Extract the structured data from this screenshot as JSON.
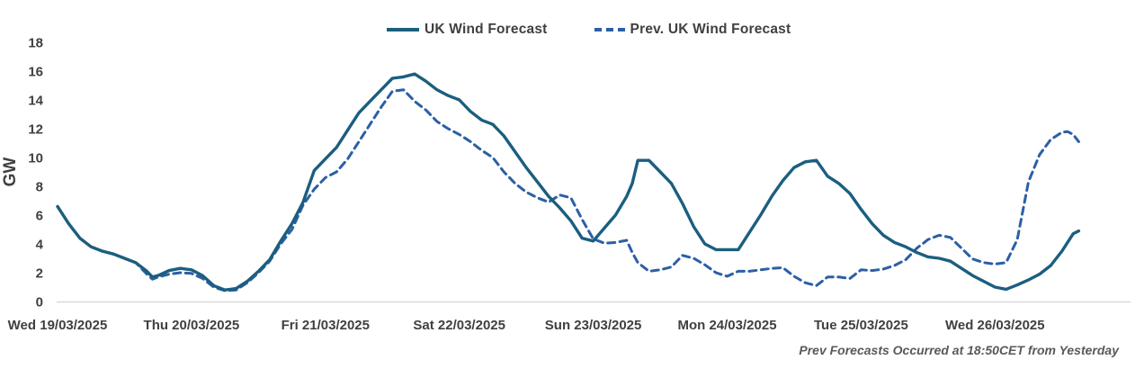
{
  "chart_data": {
    "type": "line",
    "title": "",
    "ylabel": "GW",
    "ylim": [
      0,
      18
    ],
    "y_ticks": [
      0,
      2,
      4,
      6,
      8,
      10,
      12,
      14,
      16,
      18
    ],
    "x_labels": [
      "Wed 19/03/2025",
      "Thu 20/03/2025",
      "Fri 21/03/2025",
      "Sat 22/03/2025",
      "Sun 23/03/2025",
      "Mon 24/03/2025",
      "Tue 25/03/2025",
      "Wed 26/03/2025"
    ],
    "x_unit": "hours from Wed 19/03/2025 00:00",
    "grid": "off",
    "legend_position": "top",
    "footnote": "Prev Forecasts Occurred at 18:50CET from Yesterday",
    "axis_color": "#D9D9D9",
    "text_color": "#404040",
    "series": [
      {
        "name": "Prev. UK Wind Forecast",
        "style": "dashed",
        "color": "#2C5FA5",
        "points": [
          [
            0,
            6.6
          ],
          [
            2,
            5.4
          ],
          [
            4,
            4.4
          ],
          [
            6,
            3.8
          ],
          [
            8,
            3.5
          ],
          [
            10,
            3.3
          ],
          [
            12,
            3.0
          ],
          [
            14,
            2.7
          ],
          [
            16,
            1.9
          ],
          [
            17,
            1.55
          ],
          [
            18,
            1.7
          ],
          [
            20,
            1.9
          ],
          [
            22,
            2.0
          ],
          [
            24,
            1.95
          ],
          [
            26,
            1.6
          ],
          [
            28,
            1.0
          ],
          [
            30,
            0.75
          ],
          [
            32,
            0.8
          ],
          [
            34,
            1.3
          ],
          [
            36,
            2.0
          ],
          [
            38,
            2.8
          ],
          [
            40,
            4.0
          ],
          [
            42,
            5.0
          ],
          [
            44,
            6.7
          ],
          [
            46,
            7.8
          ],
          [
            48,
            8.6
          ],
          [
            50,
            9.0
          ],
          [
            52,
            9.9
          ],
          [
            54,
            11.1
          ],
          [
            56,
            12.3
          ],
          [
            58,
            13.5
          ],
          [
            60,
            14.6
          ],
          [
            62,
            14.7
          ],
          [
            64,
            13.9
          ],
          [
            66,
            13.3
          ],
          [
            68,
            12.5
          ],
          [
            70,
            12.0
          ],
          [
            72,
            11.6
          ],
          [
            74,
            11.1
          ],
          [
            76,
            10.5
          ],
          [
            78,
            10.0
          ],
          [
            80,
            9.0
          ],
          [
            82,
            8.2
          ],
          [
            84,
            7.6
          ],
          [
            86,
            7.2
          ],
          [
            88,
            6.9
          ],
          [
            90,
            7.4
          ],
          [
            92,
            7.2
          ],
          [
            94,
            5.7
          ],
          [
            96,
            4.35
          ],
          [
            98,
            4.05
          ],
          [
            100,
            4.1
          ],
          [
            102,
            4.25
          ],
          [
            103,
            3.4
          ],
          [
            104,
            2.7
          ],
          [
            106,
            2.1
          ],
          [
            108,
            2.2
          ],
          [
            110,
            2.4
          ],
          [
            112,
            3.2
          ],
          [
            114,
            3.0
          ],
          [
            116,
            2.55
          ],
          [
            118,
            2.0
          ],
          [
            120,
            1.75
          ],
          [
            122,
            2.1
          ],
          [
            124,
            2.1
          ],
          [
            126,
            2.2
          ],
          [
            128,
            2.3
          ],
          [
            130,
            2.35
          ],
          [
            132,
            1.75
          ],
          [
            134,
            1.3
          ],
          [
            136,
            1.1
          ],
          [
            138,
            1.7
          ],
          [
            140,
            1.7
          ],
          [
            142,
            1.6
          ],
          [
            144,
            2.2
          ],
          [
            146,
            2.15
          ],
          [
            148,
            2.25
          ],
          [
            150,
            2.5
          ],
          [
            152,
            2.9
          ],
          [
            154,
            3.7
          ],
          [
            156,
            4.3
          ],
          [
            158,
            4.6
          ],
          [
            160,
            4.45
          ],
          [
            162,
            3.7
          ],
          [
            164,
            2.95
          ],
          [
            166,
            2.7
          ],
          [
            168,
            2.6
          ],
          [
            170,
            2.7
          ],
          [
            172,
            4.3
          ],
          [
            174,
            8.3
          ],
          [
            176,
            10.2
          ],
          [
            178,
            11.25
          ],
          [
            180,
            11.75
          ],
          [
            181,
            11.8
          ],
          [
            182,
            11.6
          ],
          [
            183,
            11.1
          ]
        ]
      },
      {
        "name": "UK Wind Forecast",
        "style": "solid",
        "color": "#1B5E7F",
        "points": [
          [
            0,
            6.6
          ],
          [
            2,
            5.4
          ],
          [
            4,
            4.4
          ],
          [
            6,
            3.8
          ],
          [
            8,
            3.5
          ],
          [
            10,
            3.3
          ],
          [
            12,
            3.0
          ],
          [
            14,
            2.7
          ],
          [
            16,
            2.1
          ],
          [
            17,
            1.7
          ],
          [
            18,
            1.8
          ],
          [
            20,
            2.15
          ],
          [
            22,
            2.3
          ],
          [
            24,
            2.2
          ],
          [
            26,
            1.8
          ],
          [
            28,
            1.1
          ],
          [
            30,
            0.8
          ],
          [
            32,
            0.9
          ],
          [
            34,
            1.4
          ],
          [
            36,
            2.1
          ],
          [
            38,
            2.9
          ],
          [
            40,
            4.2
          ],
          [
            42,
            5.4
          ],
          [
            44,
            6.9
          ],
          [
            46,
            9.1
          ],
          [
            48,
            9.9
          ],
          [
            50,
            10.7
          ],
          [
            52,
            11.9
          ],
          [
            54,
            13.1
          ],
          [
            56,
            13.9
          ],
          [
            58,
            14.7
          ],
          [
            60,
            15.5
          ],
          [
            62,
            15.6
          ],
          [
            64,
            15.8
          ],
          [
            66,
            15.3
          ],
          [
            68,
            14.7
          ],
          [
            70,
            14.3
          ],
          [
            72,
            14.0
          ],
          [
            74,
            13.2
          ],
          [
            76,
            12.6
          ],
          [
            78,
            12.3
          ],
          [
            80,
            11.5
          ],
          [
            82,
            10.4
          ],
          [
            84,
            9.3
          ],
          [
            86,
            8.3
          ],
          [
            88,
            7.3
          ],
          [
            90,
            6.5
          ],
          [
            92,
            5.6
          ],
          [
            94,
            4.4
          ],
          [
            96,
            4.2
          ],
          [
            98,
            5.1
          ],
          [
            100,
            6.0
          ],
          [
            102,
            7.3
          ],
          [
            103,
            8.2
          ],
          [
            104,
            9.8
          ],
          [
            106,
            9.8
          ],
          [
            108,
            9.0
          ],
          [
            110,
            8.2
          ],
          [
            112,
            6.8
          ],
          [
            114,
            5.2
          ],
          [
            116,
            4.0
          ],
          [
            118,
            3.6
          ],
          [
            120,
            3.6
          ],
          [
            122,
            3.6
          ],
          [
            124,
            4.8
          ],
          [
            126,
            6.0
          ],
          [
            128,
            7.3
          ],
          [
            130,
            8.4
          ],
          [
            132,
            9.3
          ],
          [
            134,
            9.7
          ],
          [
            136,
            9.8
          ],
          [
            138,
            8.7
          ],
          [
            140,
            8.2
          ],
          [
            142,
            7.5
          ],
          [
            144,
            6.4
          ],
          [
            146,
            5.4
          ],
          [
            148,
            4.6
          ],
          [
            150,
            4.1
          ],
          [
            152,
            3.8
          ],
          [
            154,
            3.4
          ],
          [
            156,
            3.1
          ],
          [
            158,
            3.0
          ],
          [
            160,
            2.8
          ],
          [
            162,
            2.3
          ],
          [
            164,
            1.8
          ],
          [
            166,
            1.4
          ],
          [
            168,
            1.0
          ],
          [
            170,
            0.85
          ],
          [
            172,
            1.15
          ],
          [
            174,
            1.5
          ],
          [
            176,
            1.9
          ],
          [
            178,
            2.5
          ],
          [
            180,
            3.5
          ],
          [
            182,
            4.7
          ],
          [
            183,
            4.9
          ]
        ]
      }
    ]
  },
  "legend": {
    "solid_label": "UK Wind Forecast",
    "dashed_label": "Prev. UK Wind Forecast"
  }
}
